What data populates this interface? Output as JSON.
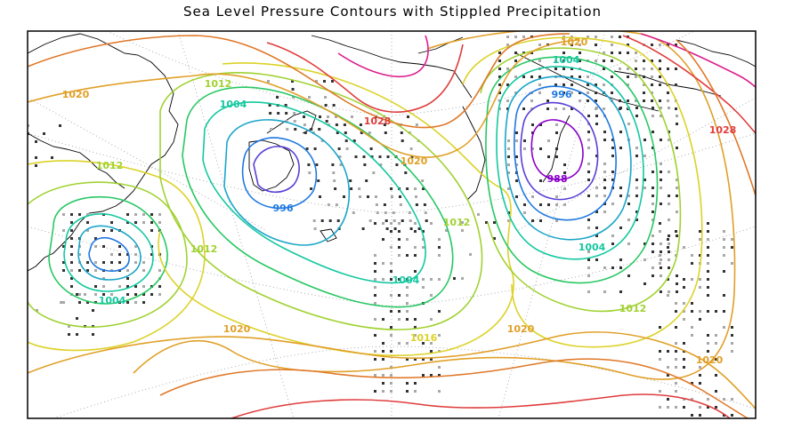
{
  "title": "Sea Level Pressure Contours with Stippled Precipitation",
  "colors": {
    "p988": "#8a00c8",
    "p992": "#5a3fd6",
    "p996": "#1e78e0",
    "p1000": "#1aa6c8",
    "p1004": "#14c8a0",
    "p1008": "#28c864",
    "p1012": "#a0d232",
    "p1016": "#dcd228",
    "p1020": "#e0a028",
    "p1024": "#e07828",
    "p1028": "#e03c3c",
    "p1032": "#dc1e8c"
  },
  "labels": {
    "l1020_top": "1020",
    "l1020_left": "1020",
    "l1012_a": "1012",
    "l1004_a": "1004",
    "l1028_mid": "1028",
    "l1020_mid": "1020",
    "l1012_b": "1012",
    "l996": "996",
    "l1012_left": "1012",
    "l1012_c": "1012",
    "l1004_left": "1004",
    "l1004_b": "1004",
    "l1020_bottom_left": "1020",
    "l1016_bottom": "1016",
    "l1020_bottom_mid": "1020",
    "l1028_right": "1028",
    "l1004_right": "1004",
    "l988": "988",
    "l1012_right": "1012",
    "l1020_right": "1020",
    "l996_right": "996",
    "l1004_top_right": "1004"
  }
}
